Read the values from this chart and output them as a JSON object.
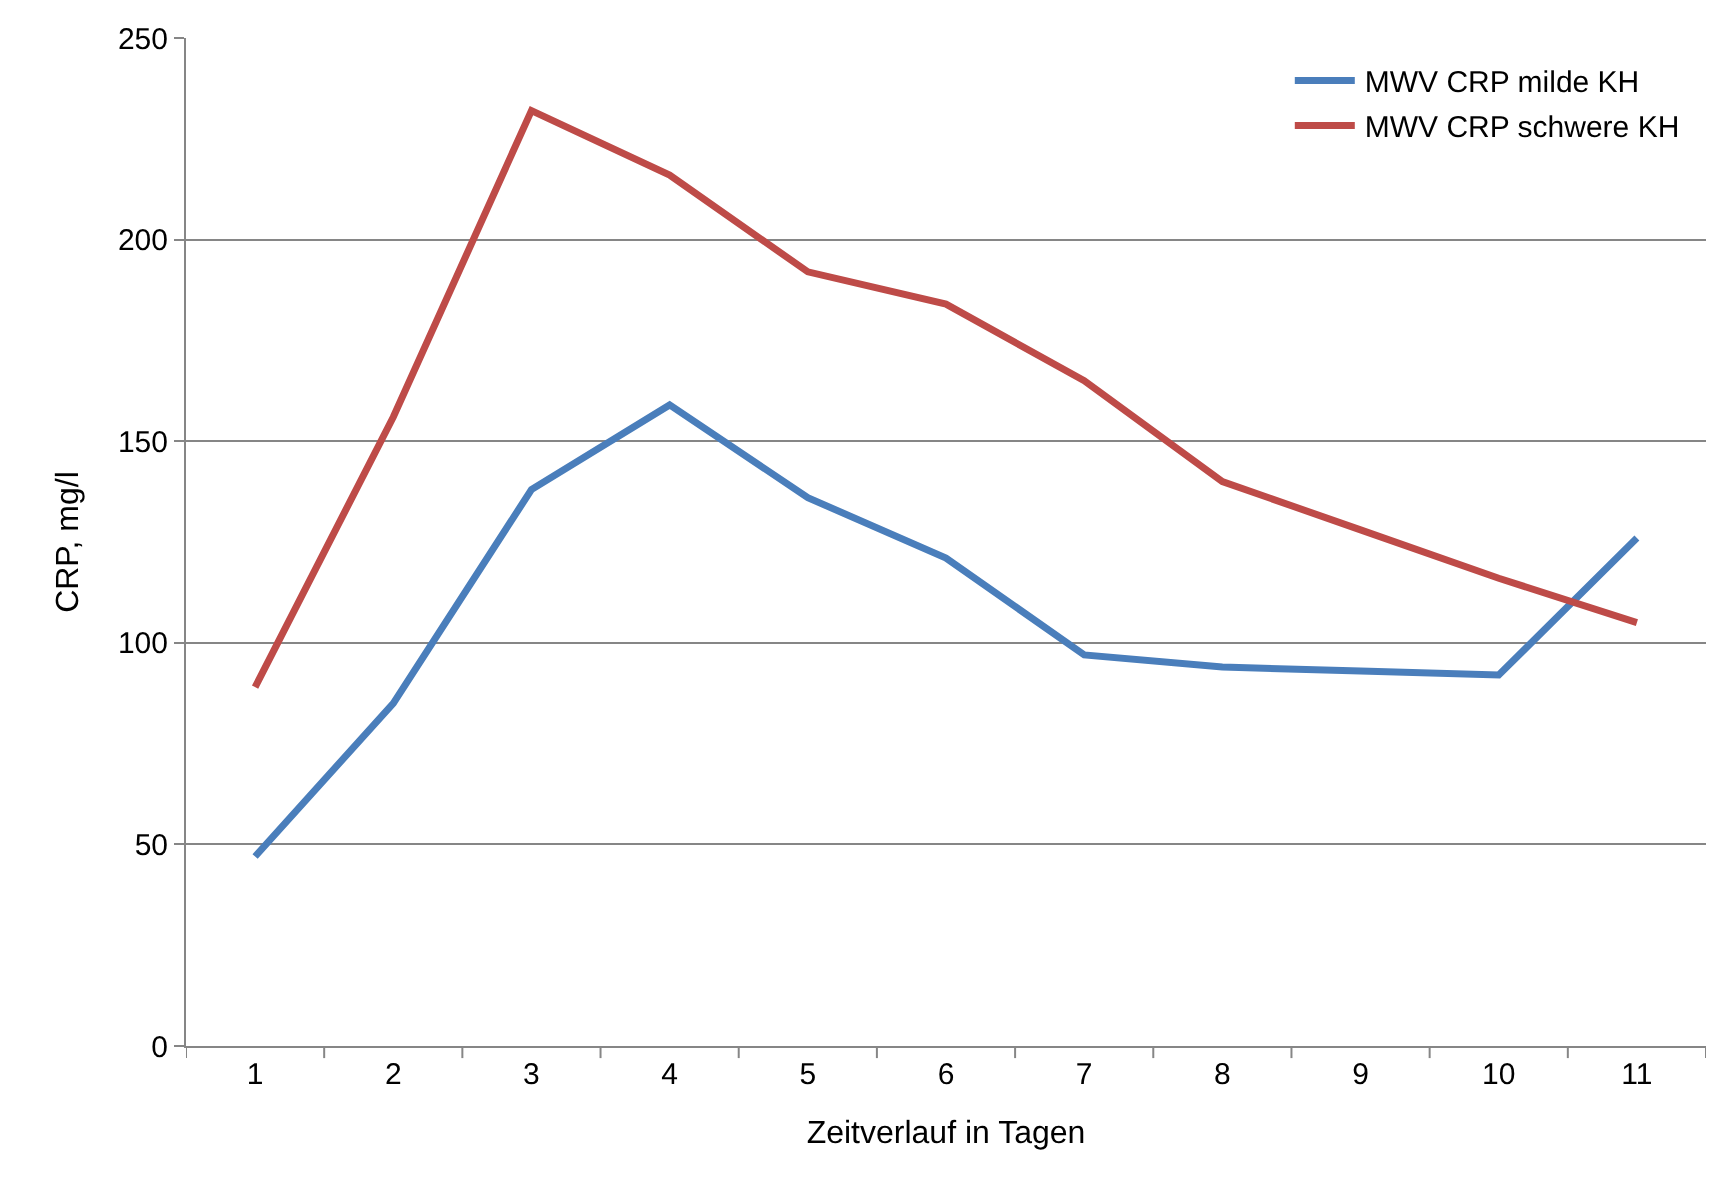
{
  "chart_data": {
    "type": "line",
    "xlabel": "Zeitverlauf in Tagen",
    "ylabel": "CRP, mg/l",
    "categories": [
      "1",
      "2",
      "3",
      "4",
      "5",
      "6",
      "7",
      "8",
      "9",
      "10",
      "11"
    ],
    "series": [
      {
        "name": "MWV CRP milde KH",
        "color": "#4a7ebb",
        "values": [
          47,
          85,
          138,
          159,
          136,
          121,
          97,
          94,
          93,
          92,
          126
        ]
      },
      {
        "name": "MWV CRP schwere KH",
        "color": "#be4b48",
        "values": [
          89,
          156,
          232,
          216,
          192,
          184,
          165,
          140,
          128,
          116,
          105
        ]
      }
    ],
    "ylim": [
      0,
      250
    ],
    "yticks": [
      0,
      50,
      100,
      150,
      200,
      250
    ],
    "grid": "y",
    "legend": "top right",
    "marker": "none",
    "line_style": "solid"
  }
}
